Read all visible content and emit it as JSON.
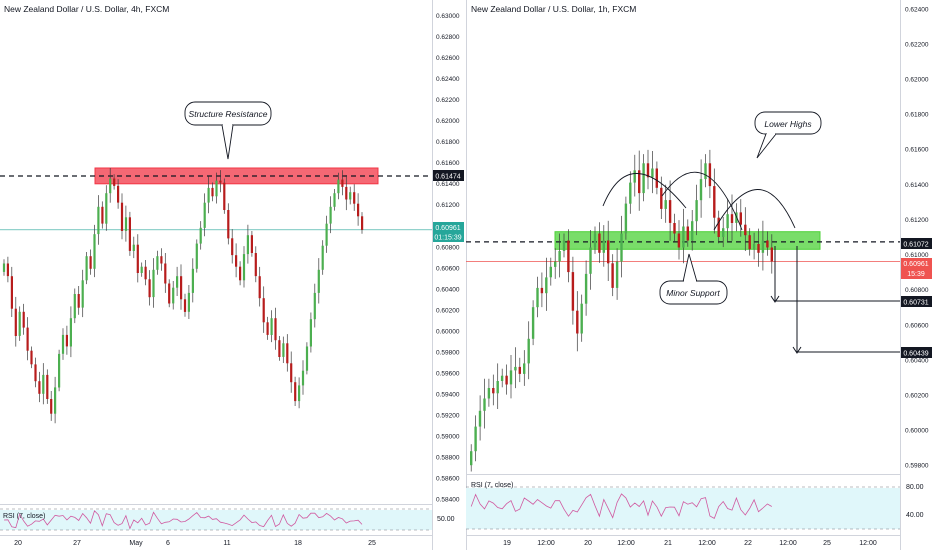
{
  "panels": {
    "left": {
      "title": "New Zealand Dollar / U.S. Dollar, 4h, FXCM",
      "annotation": "Structure Resistance",
      "price_badge": "0.60961",
      "countdown_badge": "01:15:39",
      "level_badge": "0.61474",
      "rsi_label": "RSI (7, close)",
      "rsi_tick": "50.00",
      "x_ticks": [
        "20",
        "27",
        "May",
        "6",
        "11",
        "18",
        "25"
      ]
    },
    "right": {
      "title": "New Zealand Dollar / U.S. Dollar, 1h, FXCM",
      "annotation_top": "Lower Highs",
      "annotation_bottom": "Minor Support",
      "price_badge": "0.60961",
      "countdown_badge": "15:39",
      "level_badge": "0.61072",
      "target1_badge": "0.60731",
      "target2_badge": "0.60439",
      "rsi_label": "RSI (7, close)",
      "rsi_ticks": [
        "80.00",
        "40.00"
      ],
      "x_ticks": [
        "19",
        "12:00",
        "20",
        "12:00",
        "21",
        "12:00",
        "22",
        "12:00",
        "25",
        "12:00"
      ]
    }
  },
  "chart_data": [
    {
      "type": "candlestick",
      "title": "New Zealand Dollar / U.S. Dollar, 4h, FXCM",
      "ylim": [
        0.5835,
        0.6315
      ],
      "y_ticks": [
        0.584,
        0.586,
        0.588,
        0.59,
        0.592,
        0.594,
        0.596,
        0.598,
        0.6,
        0.602,
        0.604,
        0.606,
        0.608,
        0.61,
        0.612,
        0.614,
        0.616,
        0.618,
        0.62,
        0.622,
        0.624,
        0.626,
        0.628,
        0.63
      ],
      "x_labels": [
        "20",
        "27",
        "May",
        "6",
        "11",
        "18",
        "25"
      ],
      "close": [
        0.6064,
        0.6052,
        0.6021,
        0.5995,
        0.6018,
        0.6003,
        0.5981,
        0.5968,
        0.5952,
        0.594,
        0.5958,
        0.5935,
        0.5921,
        0.5946,
        0.5978,
        0.5996,
        0.5985,
        0.6012,
        0.6035,
        0.6022,
        0.6048,
        0.6071,
        0.6059,
        0.6092,
        0.6118,
        0.6102,
        0.6131,
        0.6145,
        0.6138,
        0.6122,
        0.6095,
        0.6108,
        0.6076,
        0.6082,
        0.6055,
        0.6061,
        0.6049,
        0.6032,
        0.6058,
        0.6071,
        0.6064,
        0.6045,
        0.6026,
        0.6041,
        0.6052,
        0.603,
        0.6018,
        0.6036,
        0.6059,
        0.6083,
        0.6098,
        0.6122,
        0.6136,
        0.6128,
        0.6143,
        0.6141,
        0.6115,
        0.6088,
        0.6072,
        0.6061,
        0.6048,
        0.6073,
        0.6091,
        0.6074,
        0.6052,
        0.6031,
        0.6008,
        0.5996,
        0.6012,
        0.5991,
        0.5975,
        0.5988,
        0.5969,
        0.5951,
        0.5933,
        0.5948,
        0.5962,
        0.5985,
        0.6011,
        0.6036,
        0.6058,
        0.6081,
        0.6102,
        0.6118,
        0.6131,
        0.6144,
        0.6137,
        0.6125,
        0.6132,
        0.6121,
        0.6109,
        0.6096
      ],
      "levels": {
        "structure_resistance": [
          0.614,
          0.6155
        ],
        "dashed_level": 0.61474,
        "current_price": 0.60961
      },
      "rsi": {
        "label": "RSI (7, close)",
        "tick": 50.0
      }
    },
    {
      "type": "candlestick",
      "title": "New Zealand Dollar / U.S. Dollar, 1h, FXCM",
      "ylim": [
        0.5975,
        0.6245
      ],
      "y_ticks": [
        0.598,
        0.6,
        0.602,
        0.604,
        0.606,
        0.608,
        0.61,
        0.612,
        0.614,
        0.616,
        0.618,
        0.62,
        0.622,
        0.624
      ],
      "x_labels": [
        "19",
        "12:00",
        "20",
        "12:00",
        "21",
        "12:00",
        "22",
        "12:00",
        "25",
        "12:00"
      ],
      "close": [
        0.5988,
        0.6002,
        0.6011,
        0.6018,
        0.6024,
        0.6021,
        0.6028,
        0.6031,
        0.6026,
        0.6034,
        0.6036,
        0.6032,
        0.6038,
        0.6052,
        0.607,
        0.6081,
        0.6078,
        0.6087,
        0.6093,
        0.6096,
        0.6102,
        0.6108,
        0.609,
        0.6068,
        0.6055,
        0.6072,
        0.6089,
        0.6104,
        0.6112,
        0.6101,
        0.6108,
        0.6095,
        0.6081,
        0.6096,
        0.6112,
        0.6129,
        0.6141,
        0.6148,
        0.6135,
        0.6152,
        0.6144,
        0.6149,
        0.6138,
        0.6126,
        0.6131,
        0.6118,
        0.6112,
        0.6104,
        0.6116,
        0.6108,
        0.6119,
        0.6131,
        0.6143,
        0.6152,
        0.6139,
        0.6121,
        0.611,
        0.6115,
        0.6123,
        0.6118,
        0.6124,
        0.6117,
        0.6111,
        0.6103,
        0.6106,
        0.6101,
        0.6108,
        0.6104,
        0.6096
      ],
      "levels": {
        "minor_support": [
          0.6103,
          0.6113
        ],
        "dashed_level": 0.61072,
        "current_price": 0.60961,
        "targets": [
          0.60731,
          0.60439
        ]
      },
      "rsi": {
        "label": "RSI (7, close)",
        "ticks": [
          80.0,
          40.0
        ]
      }
    }
  ],
  "colors": {
    "up": "#26a69a",
    "down": "#ef5350",
    "candle_up_body": "#4caf50",
    "candle_down_body": "#b71c1c",
    "resistance_zone": "#f23645",
    "support_zone": "#4cd137",
    "rsi_line": "#d05aa0",
    "rsi_band": "#e0f7fa",
    "price_line": "#26a69a"
  }
}
